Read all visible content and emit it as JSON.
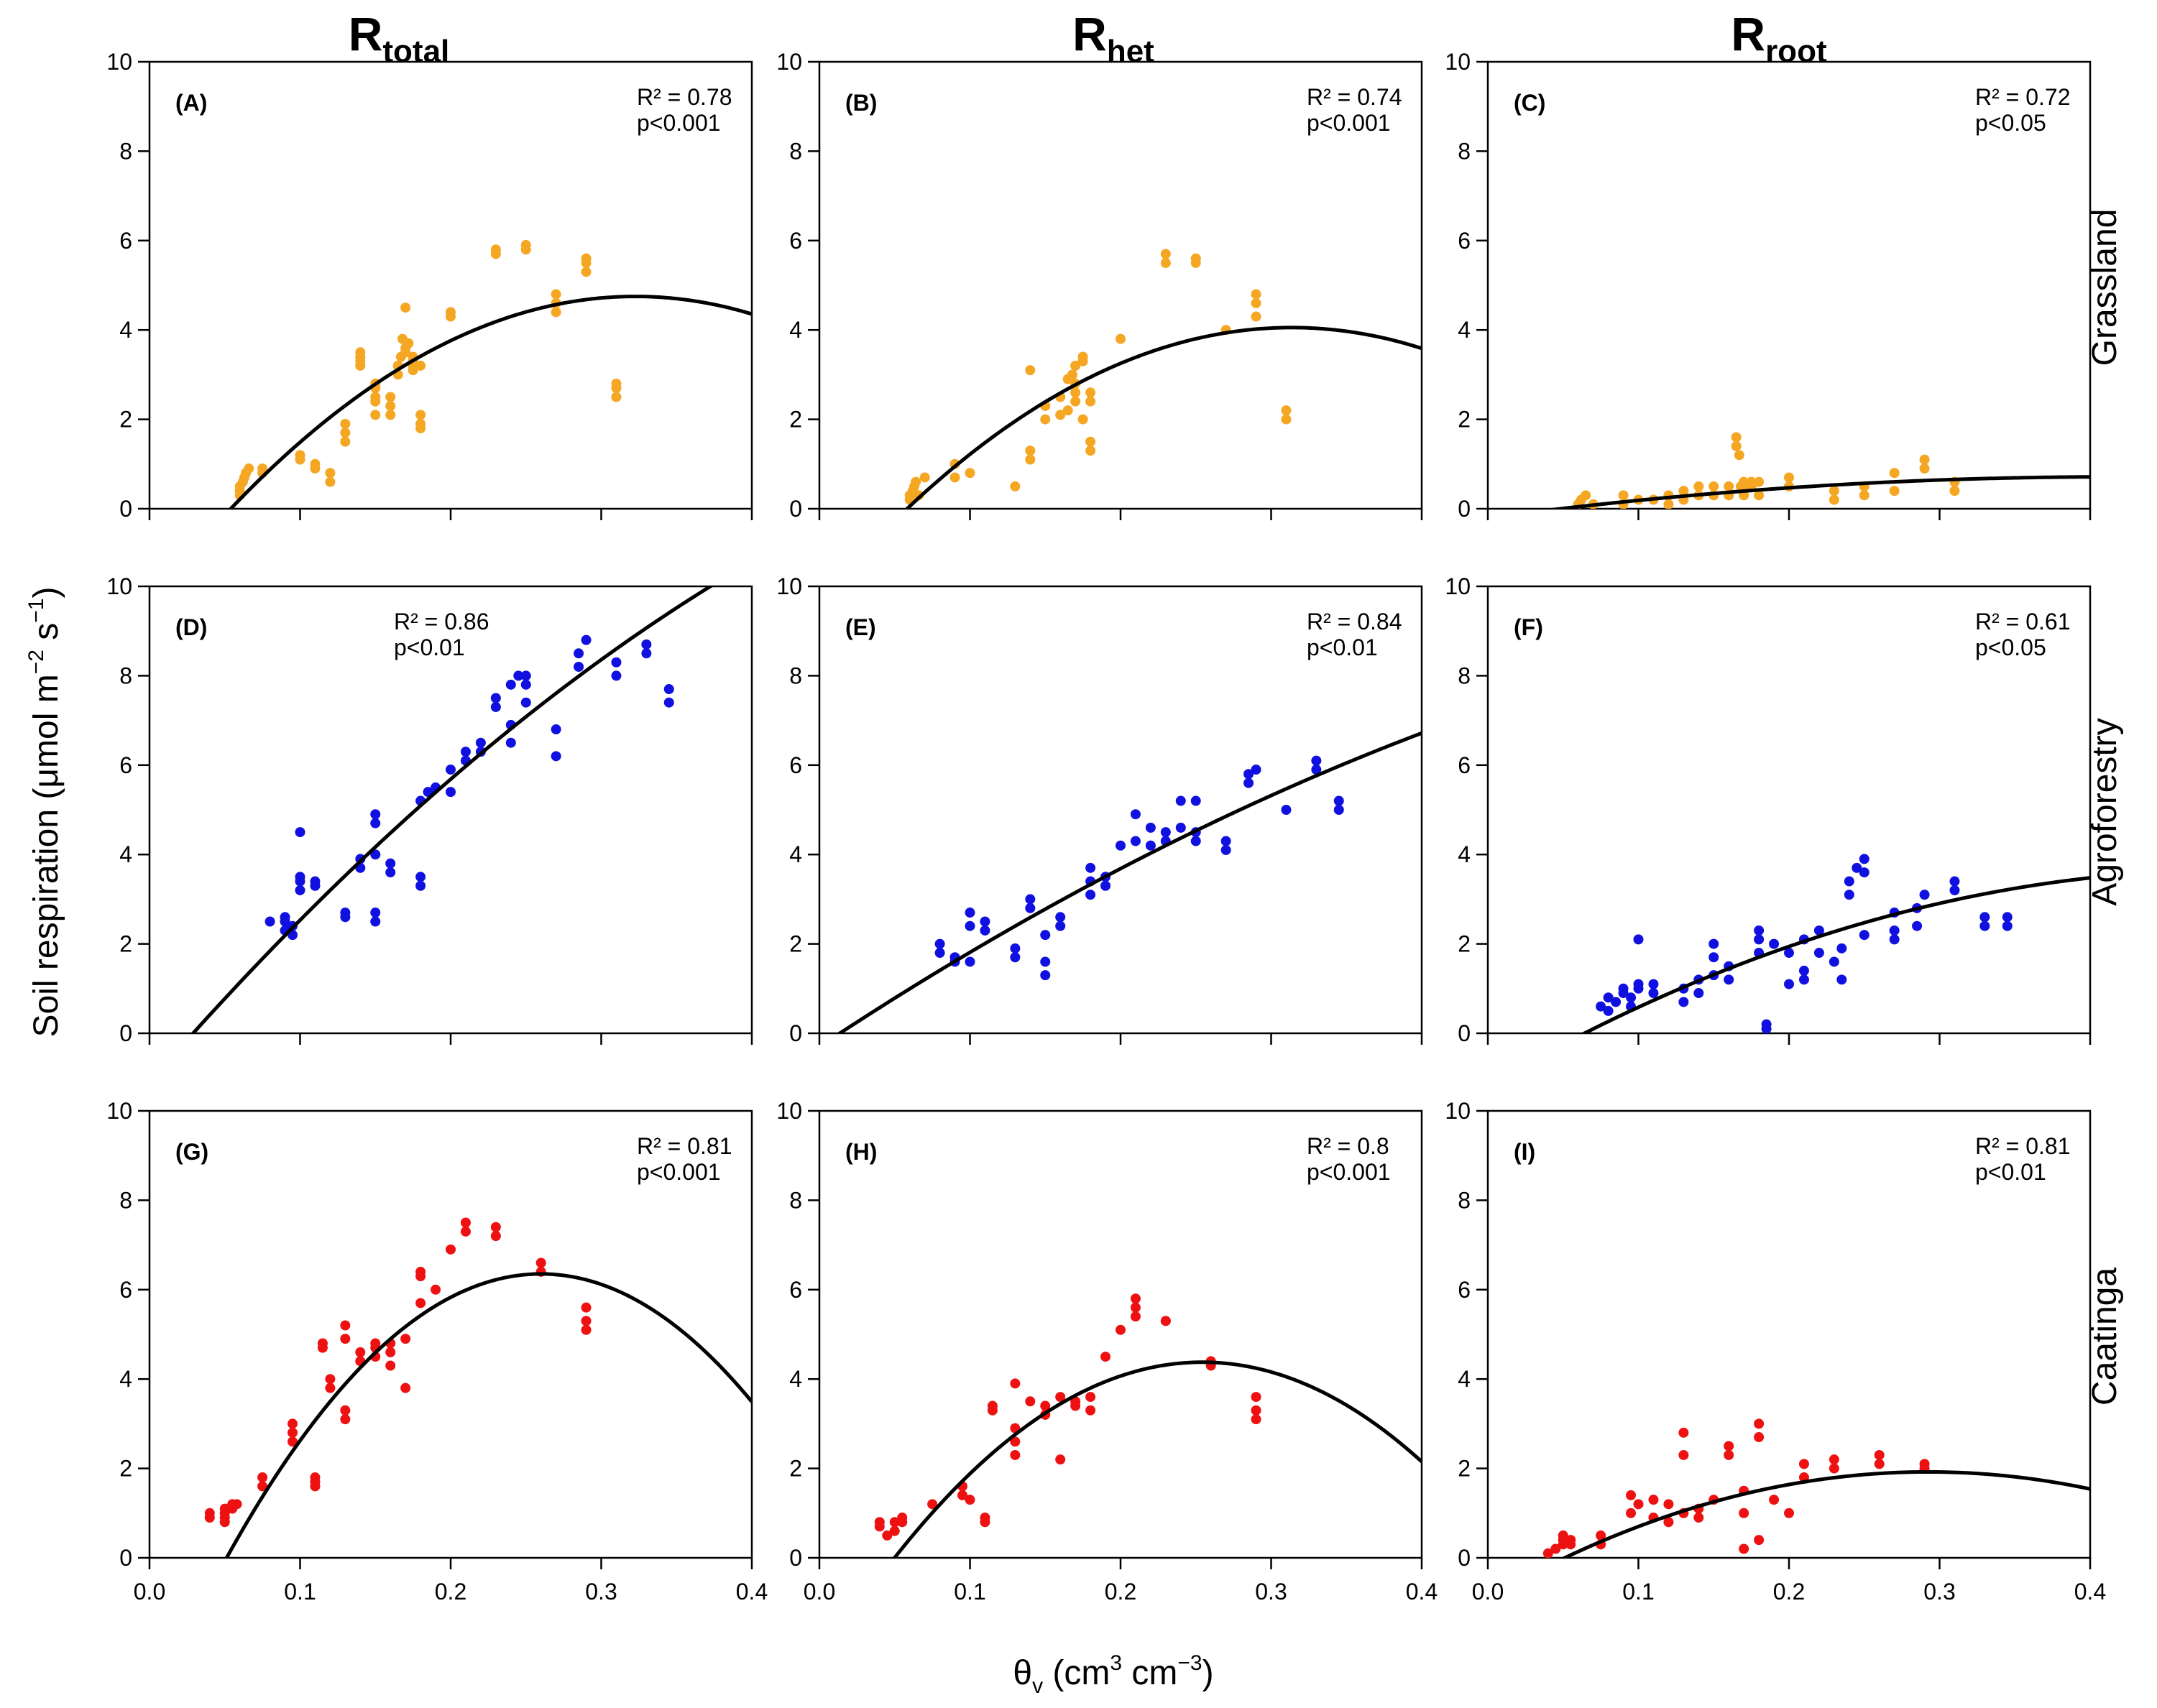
{
  "figure": {
    "col_titles": [
      {
        "main": "R",
        "sub": "total"
      },
      {
        "main": "R",
        "sub": "het"
      },
      {
        "main": "R",
        "sub": "root"
      }
    ],
    "row_labels": [
      "Grassland",
      "Agroforestry",
      "Caatinga"
    ],
    "ylabel": {
      "prefix": "Soil respiration (μmol m",
      "sup1": "−2",
      "mid": " s",
      "sup2": "−1",
      "suffix": ")"
    },
    "xlabel": {
      "prefix": "θ",
      "sub": "v",
      "mid1": " (cm",
      "sup1": "3",
      "mid2": " cm",
      "sup2": "−3",
      "suffix": ")"
    },
    "xticks": [
      "0.0",
      "0.1",
      "0.2",
      "0.3",
      "0.4"
    ],
    "yticks": [
      "0",
      "2",
      "4",
      "6",
      "8",
      "10"
    ],
    "colors": {
      "Grassland": "#F5A623",
      "Agroforestry": "#1010E0",
      "Caatinga": "#EE1111",
      "fit": "#000000"
    }
  },
  "chart_data": [
    {
      "panel": "(A)",
      "type": "scatter",
      "row": "Grassland",
      "col": "Rtotal",
      "r2": "R² = 0.78",
      "p": "p<0.001",
      "xlim": [
        0,
        0.4
      ],
      "ylim": [
        0,
        10
      ],
      "fit": {
        "type": "quadratic",
        "coef": [
          -2.1,
          42.46,
          -65.8
        ]
      },
      "x": [
        0.06,
        0.06,
        0.06,
        0.062,
        0.063,
        0.064,
        0.066,
        0.075,
        0.075,
        0.1,
        0.1,
        0.11,
        0.11,
        0.12,
        0.12,
        0.13,
        0.13,
        0.13,
        0.14,
        0.14,
        0.14,
        0.14,
        0.15,
        0.15,
        0.15,
        0.15,
        0.15,
        0.16,
        0.16,
        0.16,
        0.165,
        0.165,
        0.167,
        0.168,
        0.17,
        0.17,
        0.17,
        0.172,
        0.175,
        0.175,
        0.175,
        0.175,
        0.18,
        0.18,
        0.18,
        0.18,
        0.2,
        0.2,
        0.23,
        0.23,
        0.25,
        0.25,
        0.27,
        0.27,
        0.27,
        0.29,
        0.29,
        0.29,
        0.31,
        0.31,
        0.31
      ],
      "y": [
        0.3,
        0.4,
        0.5,
        0.6,
        0.7,
        0.8,
        0.9,
        0.8,
        0.9,
        1.1,
        1.2,
        0.9,
        1.0,
        0.6,
        0.8,
        1.5,
        1.7,
        1.9,
        3.2,
        3.3,
        3.4,
        3.5,
        2.1,
        2.4,
        2.5,
        2.7,
        2.8,
        2.1,
        2.3,
        2.5,
        3.0,
        3.2,
        3.4,
        3.8,
        4.5,
        3.5,
        3.6,
        3.7,
        3.3,
        3.4,
        3.2,
        3.1,
        1.8,
        1.9,
        2.1,
        3.2,
        4.4,
        4.3,
        5.7,
        5.8,
        5.8,
        5.9,
        4.4,
        4.6,
        4.8,
        5.3,
        5.5,
        5.6,
        2.5,
        2.7,
        2.8
      ]
    },
    {
      "panel": "(B)",
      "type": "scatter",
      "row": "Grassland",
      "col": "Rhet",
      "r2": "R² = 0.74",
      "p": "p<0.001",
      "xlim": [
        0,
        0.4
      ],
      "ylim": [
        0,
        10
      ],
      "fit": {
        "type": "quadratic",
        "coef": [
          -2.06,
          39.0,
          -62.2
        ]
      },
      "x": [
        0.06,
        0.06,
        0.062,
        0.063,
        0.064,
        0.066,
        0.07,
        0.09,
        0.09,
        0.1,
        0.13,
        0.14,
        0.14,
        0.14,
        0.15,
        0.15,
        0.16,
        0.16,
        0.165,
        0.165,
        0.168,
        0.17,
        0.17,
        0.17,
        0.17,
        0.175,
        0.175,
        0.175,
        0.18,
        0.18,
        0.18,
        0.18,
        0.2,
        0.23,
        0.23,
        0.25,
        0.25,
        0.27,
        0.29,
        0.29,
        0.29,
        0.31,
        0.31
      ],
      "y": [
        0.2,
        0.3,
        0.4,
        0.5,
        0.6,
        0.3,
        0.7,
        0.7,
        1.0,
        0.8,
        0.5,
        1.1,
        1.3,
        3.1,
        2.0,
        2.3,
        2.1,
        2.5,
        2.2,
        2.9,
        3.0,
        3.2,
        2.8,
        2.6,
        2.4,
        3.3,
        3.4,
        2.0,
        1.3,
        1.5,
        2.4,
        2.6,
        3.8,
        5.5,
        5.7,
        5.5,
        5.6,
        4.0,
        4.3,
        4.6,
        4.8,
        2.0,
        2.2
      ]
    },
    {
      "panel": "(C)",
      "type": "scatter",
      "row": "Grassland",
      "col": "Rroot",
      "r2": "R² = 0.72",
      "p": "p<0.05",
      "xlim": [
        0,
        0.4
      ],
      "ylim": [
        0,
        10
      ],
      "fit": {
        "type": "quadratic",
        "coef": [
          -0.2,
          4.4,
          -5.3
        ]
      },
      "x": [
        0.06,
        0.062,
        0.065,
        0.07,
        0.09,
        0.09,
        0.1,
        0.11,
        0.12,
        0.12,
        0.13,
        0.13,
        0.14,
        0.14,
        0.15,
        0.15,
        0.16,
        0.16,
        0.165,
        0.165,
        0.167,
        0.168,
        0.17,
        0.17,
        0.17,
        0.175,
        0.175,
        0.18,
        0.18,
        0.2,
        0.2,
        0.23,
        0.23,
        0.25,
        0.25,
        0.27,
        0.27,
        0.29,
        0.29,
        0.31,
        0.31
      ],
      "y": [
        0.1,
        0.2,
        0.3,
        0.1,
        0.1,
        0.3,
        0.2,
        0.2,
        0.1,
        0.3,
        0.2,
        0.4,
        0.3,
        0.5,
        0.3,
        0.5,
        0.3,
        0.5,
        1.6,
        1.4,
        1.2,
        0.5,
        0.4,
        0.3,
        0.6,
        0.5,
        0.6,
        0.3,
        0.6,
        0.5,
        0.7,
        0.2,
        0.4,
        0.3,
        0.5,
        0.4,
        0.8,
        0.9,
        1.1,
        0.4,
        0.6
      ]
    },
    {
      "panel": "(D)",
      "type": "scatter",
      "row": "Agroforestry",
      "col": "Rtotal",
      "r2": "R² = 0.86",
      "p": "p<0.01",
      "xlim": [
        0,
        0.4
      ],
      "ylim": [
        0,
        10
      ],
      "fit": {
        "type": "quadratic",
        "coef": [
          -1.1,
          38.7,
          -23.9
        ]
      },
      "x": [
        0.08,
        0.09,
        0.09,
        0.09,
        0.095,
        0.095,
        0.1,
        0.1,
        0.1,
        0.1,
        0.11,
        0.11,
        0.13,
        0.13,
        0.14,
        0.14,
        0.15,
        0.15,
        0.15,
        0.15,
        0.15,
        0.16,
        0.16,
        0.18,
        0.18,
        0.18,
        0.185,
        0.19,
        0.2,
        0.2,
        0.21,
        0.21,
        0.22,
        0.22,
        0.23,
        0.23,
        0.24,
        0.24,
        0.24,
        0.245,
        0.25,
        0.25,
        0.25,
        0.27,
        0.27,
        0.285,
        0.285,
        0.29,
        0.31,
        0.31,
        0.33,
        0.33,
        0.345,
        0.345
      ],
      "y": [
        2.5,
        2.3,
        2.5,
        2.6,
        2.2,
        2.4,
        3.2,
        3.4,
        3.5,
        4.5,
        3.3,
        3.4,
        2.6,
        2.7,
        3.7,
        3.9,
        2.5,
        2.7,
        4.0,
        4.7,
        4.9,
        3.6,
        3.8,
        3.3,
        3.5,
        5.2,
        5.4,
        5.5,
        5.4,
        5.9,
        6.1,
        6.3,
        6.3,
        6.5,
        7.3,
        7.5,
        6.5,
        6.9,
        7.8,
        8.0,
        7.4,
        7.8,
        8.0,
        6.2,
        6.8,
        8.2,
        8.5,
        8.8,
        8.0,
        8.3,
        8.5,
        8.7,
        7.4,
        7.7
      ]
    },
    {
      "panel": "(E)",
      "type": "scatter",
      "row": "Agroforestry",
      "col": "Rhet",
      "r2": "R² = 0.84",
      "p": "p<0.01",
      "xlim": [
        0,
        0.4
      ],
      "ylim": [
        0,
        10
      ],
      "fit": {
        "type": "quadratic",
        "coef": [
          -0.3,
          22.3,
          -11.9
        ]
      },
      "x": [
        0.08,
        0.08,
        0.09,
        0.09,
        0.1,
        0.1,
        0.1,
        0.11,
        0.11,
        0.13,
        0.13,
        0.14,
        0.14,
        0.15,
        0.15,
        0.15,
        0.16,
        0.16,
        0.18,
        0.18,
        0.18,
        0.19,
        0.19,
        0.2,
        0.21,
        0.21,
        0.22,
        0.22,
        0.23,
        0.23,
        0.24,
        0.24,
        0.25,
        0.25,
        0.25,
        0.27,
        0.27,
        0.285,
        0.285,
        0.29,
        0.31,
        0.33,
        0.33,
        0.345,
        0.345
      ],
      "y": [
        1.8,
        2.0,
        1.6,
        1.7,
        1.6,
        2.4,
        2.7,
        2.3,
        2.5,
        1.7,
        1.9,
        2.8,
        3.0,
        1.3,
        1.6,
        2.2,
        2.4,
        2.6,
        3.1,
        3.4,
        3.7,
        3.3,
        3.5,
        4.2,
        4.3,
        4.9,
        4.2,
        4.6,
        4.3,
        4.5,
        4.6,
        5.2,
        4.3,
        4.5,
        5.2,
        4.1,
        4.3,
        5.6,
        5.8,
        5.9,
        5.0,
        5.9,
        6.1,
        5.0,
        5.2
      ]
    },
    {
      "panel": "(F)",
      "type": "scatter",
      "row": "Agroforestry",
      "col": "Rroot",
      "r2": "R² = 0.61",
      "p": "p<0.05",
      "xlim": [
        0,
        0.4
      ],
      "ylim": [
        0,
        10
      ],
      "fit": {
        "type": "quadratic",
        "coef": [
          -1.17,
          19.5,
          -19.7
        ]
      },
      "x": [
        0.075,
        0.08,
        0.08,
        0.085,
        0.09,
        0.09,
        0.095,
        0.095,
        0.1,
        0.1,
        0.1,
        0.11,
        0.11,
        0.13,
        0.13,
        0.14,
        0.14,
        0.15,
        0.15,
        0.15,
        0.16,
        0.16,
        0.18,
        0.18,
        0.18,
        0.185,
        0.185,
        0.19,
        0.2,
        0.2,
        0.21,
        0.21,
        0.21,
        0.22,
        0.22,
        0.23,
        0.235,
        0.235,
        0.24,
        0.24,
        0.245,
        0.25,
        0.25,
        0.25,
        0.27,
        0.27,
        0.27,
        0.285,
        0.285,
        0.29,
        0.31,
        0.31,
        0.33,
        0.33,
        0.345,
        0.345
      ],
      "y": [
        0.6,
        0.8,
        0.5,
        0.7,
        0.9,
        1.0,
        0.6,
        0.8,
        1.0,
        1.1,
        2.1,
        0.9,
        1.1,
        0.7,
        1.0,
        0.9,
        1.2,
        1.3,
        1.7,
        2.0,
        1.2,
        1.5,
        1.8,
        2.1,
        2.3,
        0.1,
        0.2,
        2.0,
        1.1,
        1.8,
        1.2,
        1.4,
        2.1,
        1.8,
        2.3,
        1.6,
        1.2,
        1.9,
        3.1,
        3.4,
        3.7,
        2.2,
        3.6,
        3.9,
        2.1,
        2.3,
        2.7,
        2.4,
        2.8,
        3.1,
        3.2,
        3.4,
        2.4,
        2.6,
        2.4,
        2.6
      ]
    },
    {
      "panel": "(G)",
      "type": "scatter",
      "row": "Caatinga",
      "col": "Rtotal",
      "r2": "R² = 0.81",
      "p": "p<0.001",
      "xlim": [
        0,
        0.4
      ],
      "ylim": [
        0,
        10
      ],
      "fit": {
        "type": "quadratic",
        "coef": [
          -3.5,
          75.8,
          -145.8
        ]
      },
      "x": [
        0.04,
        0.04,
        0.05,
        0.05,
        0.05,
        0.05,
        0.055,
        0.055,
        0.058,
        0.075,
        0.075,
        0.095,
        0.095,
        0.095,
        0.11,
        0.11,
        0.11,
        0.115,
        0.115,
        0.12,
        0.12,
        0.13,
        0.13,
        0.13,
        0.13,
        0.14,
        0.14,
        0.15,
        0.15,
        0.15,
        0.16,
        0.16,
        0.16,
        0.17,
        0.17,
        0.18,
        0.18,
        0.18,
        0.19,
        0.2,
        0.21,
        0.21,
        0.23,
        0.23,
        0.26,
        0.26,
        0.29,
        0.29,
        0.29
      ],
      "y": [
        0.9,
        1.0,
        0.8,
        1.0,
        1.1,
        0.9,
        1.1,
        1.2,
        1.2,
        1.6,
        1.8,
        2.6,
        2.8,
        3.0,
        1.6,
        1.7,
        1.8,
        4.7,
        4.8,
        3.8,
        4.0,
        3.1,
        3.3,
        4.9,
        5.2,
        4.4,
        4.6,
        4.5,
        4.7,
        4.8,
        4.3,
        4.6,
        4.8,
        3.8,
        4.9,
        5.7,
        6.3,
        6.4,
        6.0,
        6.9,
        7.3,
        7.5,
        7.2,
        7.4,
        6.4,
        6.6,
        5.1,
        5.3,
        5.6
      ]
    },
    {
      "panel": "(H)",
      "type": "scatter",
      "row": "Caatinga",
      "col": "Rhet",
      "r2": "R² = 0.8",
      "p": "p<0.001",
      "xlim": [
        0,
        0.4
      ],
      "ylim": [
        0,
        10
      ],
      "fit": {
        "type": "quadratic",
        "coef": [
          -2.4,
          53.3,
          -104.8
        ]
      },
      "x": [
        0.04,
        0.04,
        0.045,
        0.05,
        0.05,
        0.055,
        0.055,
        0.075,
        0.095,
        0.095,
        0.1,
        0.11,
        0.11,
        0.115,
        0.115,
        0.13,
        0.13,
        0.13,
        0.13,
        0.14,
        0.15,
        0.15,
        0.16,
        0.16,
        0.17,
        0.17,
        0.18,
        0.18,
        0.19,
        0.2,
        0.21,
        0.21,
        0.21,
        0.23,
        0.23,
        0.26,
        0.26,
        0.29,
        0.29,
        0.29
      ],
      "y": [
        0.7,
        0.8,
        0.5,
        0.6,
        0.8,
        0.8,
        0.9,
        1.2,
        1.4,
        1.6,
        1.3,
        0.8,
        0.9,
        3.3,
        3.4,
        2.3,
        2.6,
        2.9,
        3.9,
        3.5,
        3.2,
        3.4,
        2.2,
        3.6,
        3.4,
        3.5,
        3.3,
        3.6,
        4.5,
        5.1,
        5.6,
        5.8,
        5.4,
        5.3,
        5.3,
        4.3,
        4.4,
        3.1,
        3.3,
        3.6
      ]
    },
    {
      "panel": "(I)",
      "type": "scatter",
      "row": "Caatinga",
      "col": "Rroot",
      "r2": "R² = 0.81",
      "p": "p<0.01",
      "xlim": [
        0,
        0.4
      ],
      "ylim": [
        0,
        10
      ],
      "fit": {
        "type": "quadratic",
        "coef": [
          -0.9,
          19.3,
          -33.0
        ]
      },
      "x": [
        0.04,
        0.045,
        0.05,
        0.05,
        0.05,
        0.055,
        0.055,
        0.075,
        0.075,
        0.095,
        0.095,
        0.1,
        0.11,
        0.11,
        0.12,
        0.12,
        0.13,
        0.13,
        0.13,
        0.14,
        0.14,
        0.15,
        0.16,
        0.16,
        0.17,
        0.17,
        0.17,
        0.18,
        0.18,
        0.18,
        0.19,
        0.2,
        0.21,
        0.21,
        0.23,
        0.23,
        0.26,
        0.26,
        0.29,
        0.29
      ],
      "y": [
        0.1,
        0.2,
        0.3,
        0.4,
        0.5,
        0.3,
        0.4,
        0.3,
        0.5,
        1.0,
        1.4,
        1.2,
        0.9,
        1.3,
        0.8,
        1.2,
        1.0,
        2.3,
        2.8,
        0.9,
        1.1,
        1.3,
        2.3,
        2.5,
        0.2,
        1.0,
        1.5,
        0.4,
        2.7,
        3.0,
        1.3,
        1.0,
        1.8,
        2.1,
        2.0,
        2.2,
        2.1,
        2.3,
        2.0,
        2.1
      ]
    }
  ]
}
